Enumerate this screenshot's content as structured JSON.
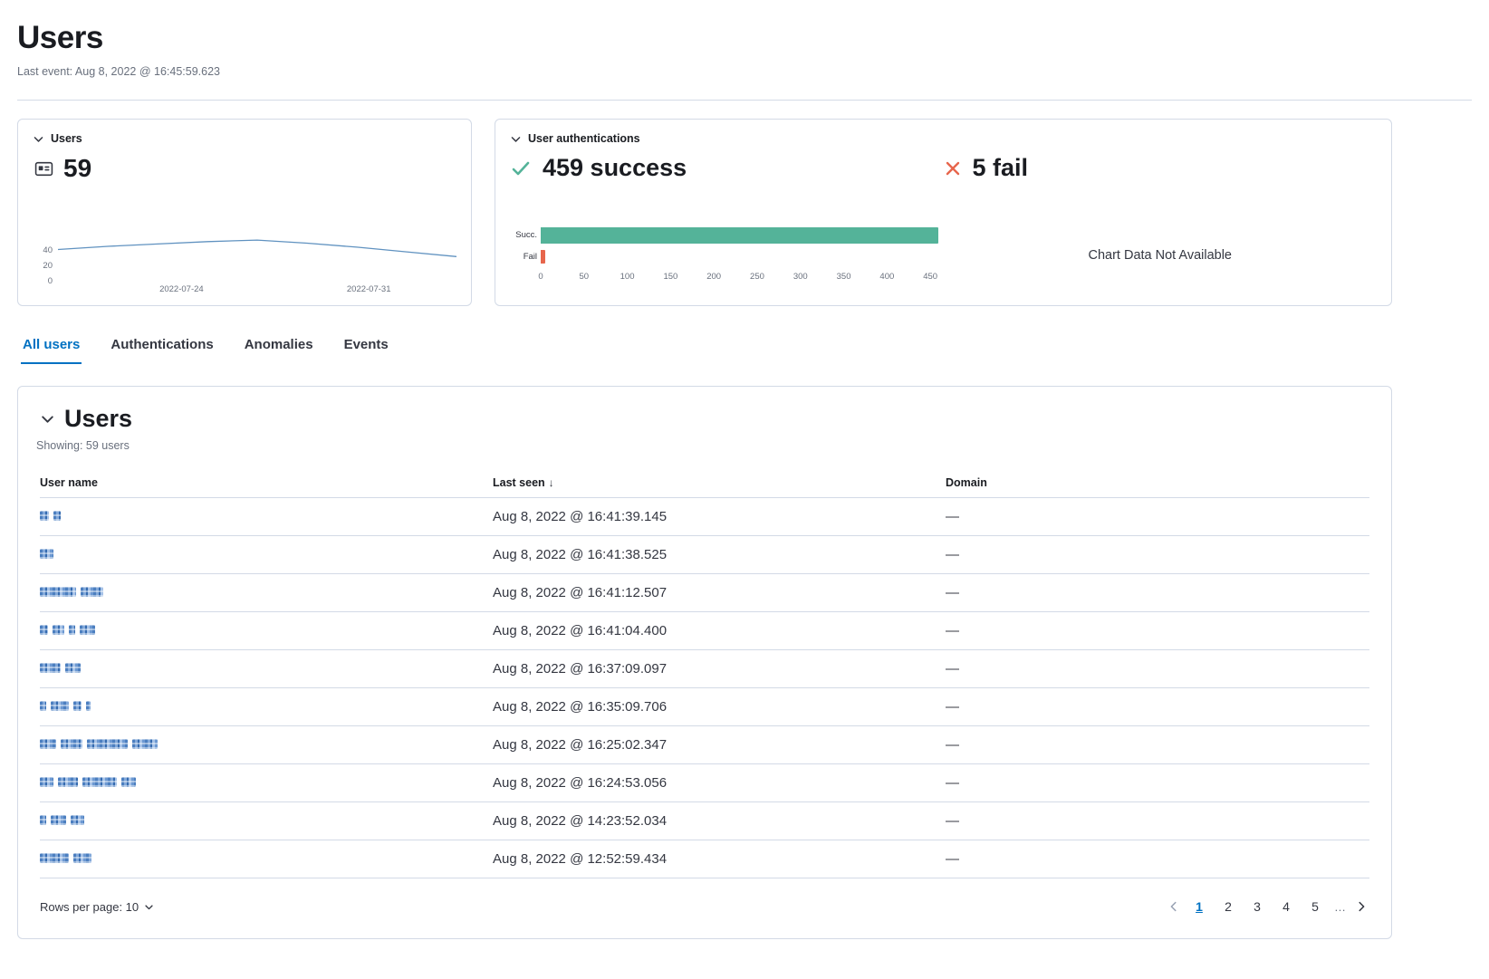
{
  "page": {
    "title": "Users",
    "last_event": "Last event: Aug 8, 2022 @ 16:45:59.623"
  },
  "colors": {
    "accent_blue": "#0071c2",
    "line_blue": "#6092c0",
    "success_green": "#54b399",
    "fail_red": "#e7664c"
  },
  "icons": {
    "sort_desc": "↓"
  },
  "stats": {
    "users": {
      "label": "Users",
      "value": "59",
      "chart_data": {
        "type": "line",
        "x": [
          "2022-07-21",
          "2022-07-22",
          "2022-07-24",
          "2022-07-25",
          "2022-07-27",
          "2022-07-28",
          "2022-07-30",
          "2022-07-31",
          "2022-08-02"
        ],
        "values": [
          41,
          45,
          48,
          51,
          53,
          49,
          44,
          38,
          32
        ],
        "ylim": [
          0,
          60
        ],
        "yticks": [
          "40",
          "20",
          "0"
        ],
        "xticks": [
          "2022-07-24",
          "2022-07-31"
        ]
      }
    },
    "auth": {
      "label": "User authentications",
      "success_label": "459 success",
      "fail_label": "5 fail",
      "no_data_text": "Chart Data Not Available",
      "chart_data": {
        "type": "bar",
        "orientation": "horizontal",
        "categories": [
          "Succ.",
          "Fail"
        ],
        "values": [
          459,
          5
        ],
        "bar_colors": [
          "#54b399",
          "#e7664c"
        ],
        "xlim": [
          0,
          465
        ],
        "xticks": [
          0,
          50,
          100,
          150,
          200,
          250,
          300,
          350,
          400,
          450
        ]
      }
    }
  },
  "tabs": [
    {
      "label": "All users",
      "active": true
    },
    {
      "label": "Authentications",
      "active": false
    },
    {
      "label": "Anomalies",
      "active": false
    },
    {
      "label": "Events",
      "active": false
    }
  ],
  "users_panel": {
    "title": "Users",
    "showing": "Showing: 59 users",
    "table": {
      "columns": {
        "name": "User name",
        "last_seen": "Last seen",
        "domain": "Domain"
      },
      "rows": [
        {
          "name_redacted": true,
          "name_segments": [
            10,
            8
          ],
          "last_seen": "Aug 8, 2022 @ 16:41:39.145",
          "domain": "—"
        },
        {
          "name_redacted": true,
          "name_segments": [
            15
          ],
          "last_seen": "Aug 8, 2022 @ 16:41:38.525",
          "domain": "—"
        },
        {
          "name_redacted": true,
          "name_segments": [
            40,
            25
          ],
          "last_seen": "Aug 8, 2022 @ 16:41:12.507",
          "domain": "—"
        },
        {
          "name_redacted": true,
          "name_segments": [
            9,
            13,
            7,
            17
          ],
          "last_seen": "Aug 8, 2022 @ 16:41:04.400",
          "domain": "—"
        },
        {
          "name_redacted": true,
          "name_segments": [
            23,
            17
          ],
          "last_seen": "Aug 8, 2022 @ 16:37:09.097",
          "domain": "—"
        },
        {
          "name_redacted": true,
          "name_segments": [
            7,
            20,
            9,
            5
          ],
          "last_seen": "Aug 8, 2022 @ 16:35:09.706",
          "domain": "—"
        },
        {
          "name_redacted": true,
          "name_segments": [
            18,
            24,
            45,
            28
          ],
          "last_seen": "Aug 8, 2022 @ 16:25:02.347",
          "domain": "—"
        },
        {
          "name_redacted": true,
          "name_segments": [
            15,
            22,
            38,
            16
          ],
          "last_seen": "Aug 8, 2022 @ 16:24:53.056",
          "domain": "—"
        },
        {
          "name_redacted": true,
          "name_segments": [
            7,
            17,
            15
          ],
          "last_seen": "Aug 8, 2022 @ 14:23:52.034",
          "domain": "—"
        },
        {
          "name_redacted": true,
          "name_segments": [
            32,
            20
          ],
          "last_seen": "Aug 8, 2022 @ 12:52:59.434",
          "domain": "—"
        }
      ]
    },
    "footer": {
      "rows_per_page": "Rows per page: 10",
      "pages": [
        "1",
        "2",
        "3",
        "4",
        "5"
      ],
      "active_page": "1",
      "ellipsis": "…"
    }
  }
}
